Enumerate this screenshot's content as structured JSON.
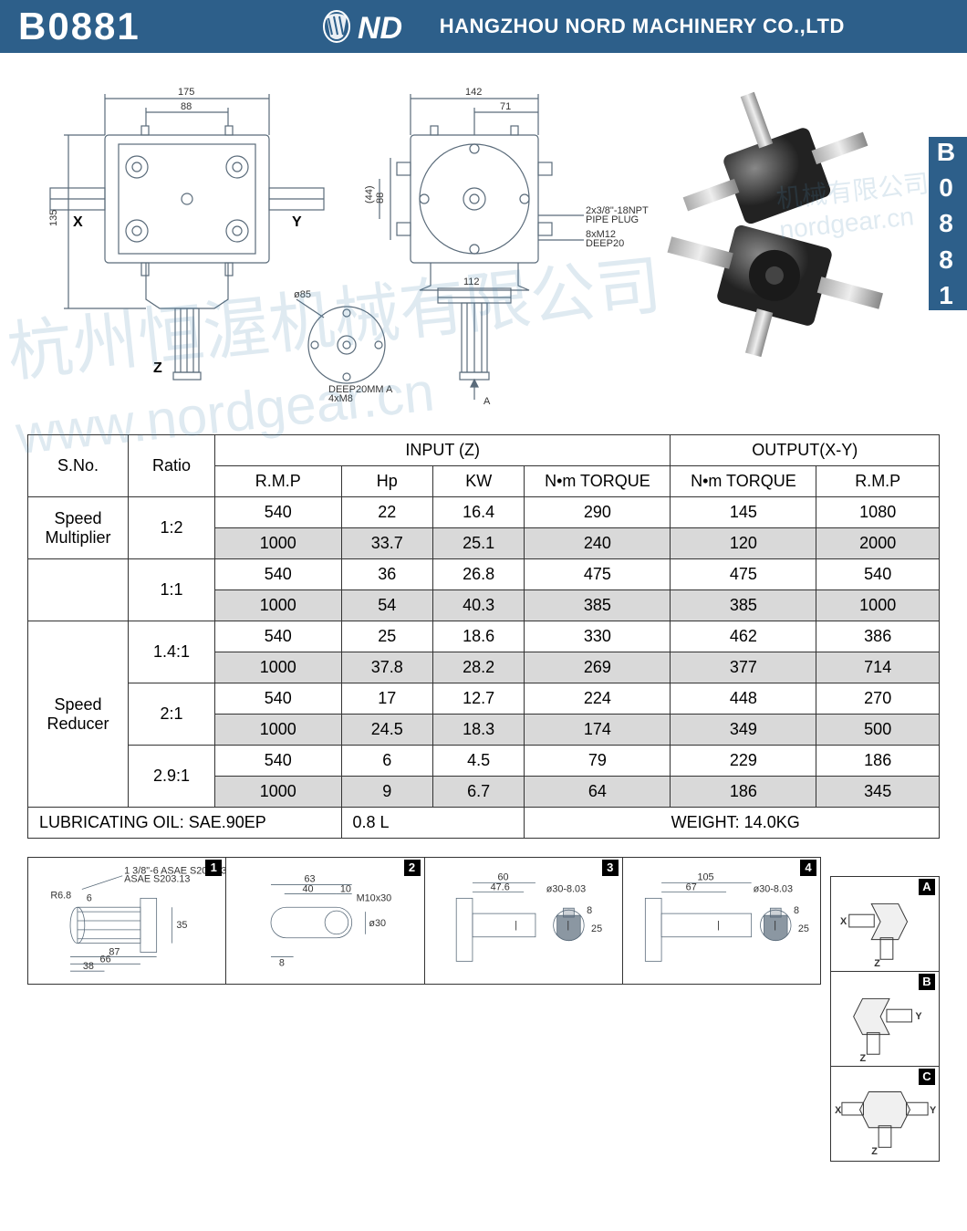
{
  "header": {
    "model": "B0881",
    "company": "HANGZHOU NORD MACHINERY CO.,LTD",
    "logo_text": "ND"
  },
  "side_tab": "B0881",
  "watermark_main": "杭州恒渥机械有限公司",
  "watermark_url": "www.nordgear.cn",
  "watermark_small_cn": "机械有限公司",
  "watermark_small_url": "nordgear.cn",
  "drawing": {
    "dims": {
      "w175": "175",
      "w88": "88",
      "w142": "142",
      "w71": "71",
      "h135": "135",
      "h88": "88",
      "h44": "(44)",
      "w112": "112",
      "dia85": "ø85"
    },
    "axes": {
      "x": "X",
      "y": "Y",
      "z": "Z",
      "a": "A"
    },
    "notes": {
      "pipe_plug": "2x3/8\"-18NPT\nPIPE PLUG",
      "m12": "8xM12\nDEEP20",
      "m8": "DEEP20MM\n4xM8"
    }
  },
  "table": {
    "header": {
      "sno": "S.No.",
      "ratio": "Ratio",
      "input": "INPUT (Z)",
      "output": "OUTPUT(X-Y)",
      "rmp": "R.M.P",
      "hp": "Hp",
      "kw": "KW",
      "nm": "N•m TORQUE"
    },
    "groups": [
      {
        "name": "Speed\nMultiplier",
        "ratios": [
          {
            "ratio": "1:2",
            "rows": [
              {
                "rmp": "540",
                "hp": "22",
                "kw": "16.4",
                "nm_in": "290",
                "nm_out": "145",
                "rmp_out": "1080",
                "shaded": false
              },
              {
                "rmp": "1000",
                "hp": "33.7",
                "kw": "25.1",
                "nm_in": "240",
                "nm_out": "120",
                "rmp_out": "2000",
                "shaded": true
              }
            ]
          }
        ]
      },
      {
        "name": "",
        "ratios": [
          {
            "ratio": "1:1",
            "rows": [
              {
                "rmp": "540",
                "hp": "36",
                "kw": "26.8",
                "nm_in": "475",
                "nm_out": "475",
                "rmp_out": "540",
                "shaded": false
              },
              {
                "rmp": "1000",
                "hp": "54",
                "kw": "40.3",
                "nm_in": "385",
                "nm_out": "385",
                "rmp_out": "1000",
                "shaded": true
              }
            ]
          }
        ]
      },
      {
        "name": "Speed\nReducer",
        "ratios": [
          {
            "ratio": "1.4:1",
            "rows": [
              {
                "rmp": "540",
                "hp": "25",
                "kw": "18.6",
                "nm_in": "330",
                "nm_out": "462",
                "rmp_out": "386",
                "shaded": false
              },
              {
                "rmp": "1000",
                "hp": "37.8",
                "kw": "28.2",
                "nm_in": "269",
                "nm_out": "377",
                "rmp_out": "714",
                "shaded": true
              }
            ]
          },
          {
            "ratio": "2:1",
            "rows": [
              {
                "rmp": "540",
                "hp": "17",
                "kw": "12.7",
                "nm_in": "224",
                "nm_out": "448",
                "rmp_out": "270",
                "shaded": false
              },
              {
                "rmp": "1000",
                "hp": "24.5",
                "kw": "18.3",
                "nm_in": "174",
                "nm_out": "349",
                "rmp_out": "500",
                "shaded": true
              }
            ]
          },
          {
            "ratio": "2.9:1",
            "rows": [
              {
                "rmp": "540",
                "hp": "6",
                "kw": "4.5",
                "nm_in": "79",
                "nm_out": "229",
                "rmp_out": "186",
                "shaded": false
              },
              {
                "rmp": "1000",
                "hp": "9",
                "kw": "6.7",
                "nm_in": "64",
                "nm_out": "186",
                "rmp_out": "345",
                "shaded": true
              }
            ]
          }
        ]
      }
    ],
    "footer": {
      "oil_label": "LUBRICATING OIL: SAE.90EP",
      "oil_qty": "0.8 L",
      "weight": "WEIGHT: 14.0KG"
    }
  },
  "details": {
    "box1": {
      "num": "1",
      "dims": {
        "spec": "1 3/8\"-6\nASAE S203.13",
        "r": "R6.8",
        "d6": "6",
        "d35": "35",
        "d38": "38",
        "d66": "66",
        "d87": "87"
      }
    },
    "box2": {
      "num": "2",
      "dims": {
        "d63": "63",
        "d40": "40",
        "d10": "10",
        "spec": "M10x30",
        "dia30": "ø30",
        "d8": "8"
      }
    },
    "box3": {
      "num": "3",
      "dims": {
        "d60": "60",
        "d476": "47.6",
        "dia": "ø30-8.03",
        "d8": "8",
        "d25": "25",
        "bar": "|"
      }
    },
    "box4": {
      "num": "4",
      "dims": {
        "d105": "105",
        "d67": "67",
        "dia": "ø30-8.03",
        "d8": "8",
        "d25": "25",
        "bar": "|"
      }
    }
  },
  "configs": {
    "a": {
      "letter": "A",
      "labels": {
        "x": "X",
        "z": "Z"
      }
    },
    "b": {
      "letter": "B",
      "labels": {
        "y": "Y",
        "z": "Z"
      }
    },
    "c": {
      "letter": "C",
      "labels": {
        "x": "X",
        "y": "Y",
        "z": "Z"
      }
    }
  },
  "colors": {
    "header_bg": "#2d5f8a",
    "border": "#333333",
    "shade": "#d9d9d9",
    "drawing_stroke": "#5a6b7a"
  }
}
